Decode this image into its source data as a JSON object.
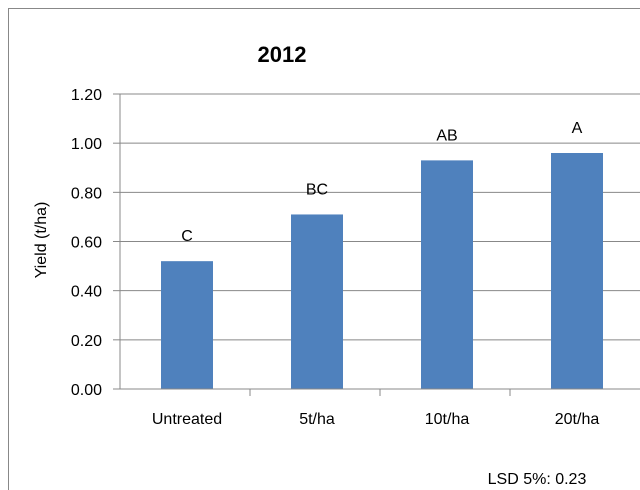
{
  "chart_data": {
    "type": "bar",
    "title": "2012",
    "ylabel": "Yield (t/ha)",
    "xlabel": "",
    "categories": [
      "Untreated",
      "5t/ha",
      "10t/ha",
      "20t/ha"
    ],
    "values": [
      0.52,
      0.71,
      0.93,
      0.96
    ],
    "data_labels": [
      "C",
      "BC",
      "AB",
      "A"
    ],
    "ylim": [
      0,
      1.2
    ],
    "yticks": [
      "0.00",
      "0.20",
      "0.40",
      "0.60",
      "0.80",
      "1.00",
      "1.20"
    ],
    "grid": true,
    "legend": "none",
    "bar_color": "#4F81BD",
    "annotation": "LSD 5%: 0.23"
  }
}
